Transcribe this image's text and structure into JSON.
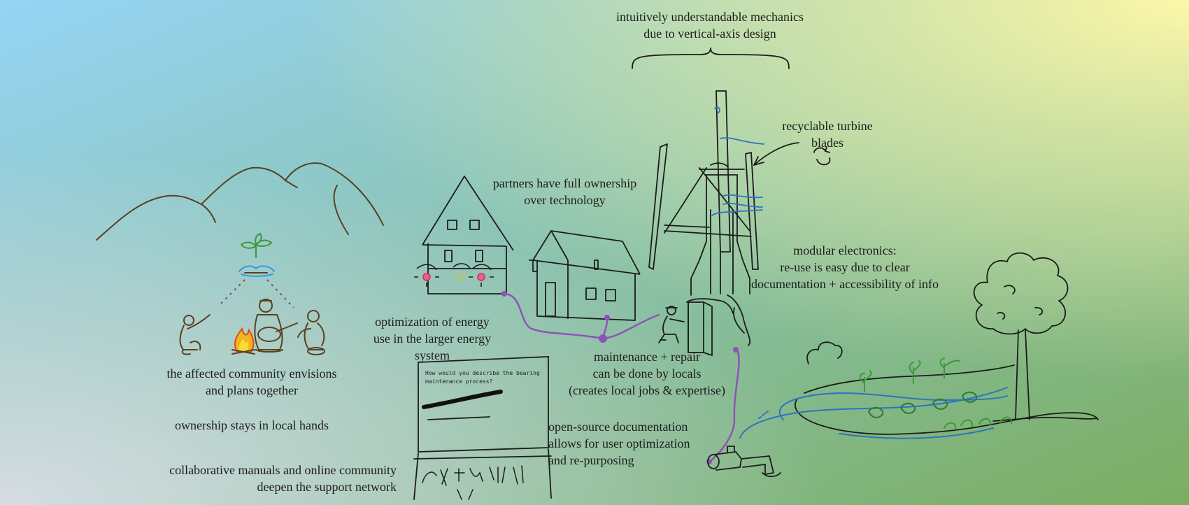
{
  "colors": {
    "bg_top_left": "#96d4f5",
    "bg_top_right": "#fdf7a8",
    "bg_bottom_left": "#d2dce4",
    "bg_bottom_right": "#7cae62",
    "ink": "#1c1c1c",
    "mountain": "#5a4020",
    "purple_wire": "#8c55b4",
    "water_blue": "#2e73c0",
    "plant_green": "#3a9a3a"
  },
  "labels": {
    "mechanics": [
      "intuitively understandable mechanics",
      "due to vertical-axis design"
    ],
    "blades": [
      "recyclable turbine",
      "blades"
    ],
    "ownership_partners": [
      "partners have full ownership",
      "over technology"
    ],
    "modular": [
      "modular electronics:",
      "re-use is easy due to clear",
      "documentation + accessibility of info"
    ],
    "optimization": [
      "optimization of energy",
      "use in the larger energy",
      "system"
    ],
    "maintenance": [
      "maintenance + repair",
      "can be done by locals",
      "(creates local jobs & expertise)"
    ],
    "community": [
      "the affected community envisions",
      "and plans together"
    ],
    "local_hands": [
      "ownership stays in local hands"
    ],
    "opensource": [
      "open-source documentation",
      "allows for user optimization",
      "and re-purposing"
    ],
    "manuals": [
      "collaborative manuals and online community",
      "deepen the support network"
    ]
  },
  "form": {
    "question": [
      "How would you describe the bearing",
      "maintenance process?"
    ]
  }
}
